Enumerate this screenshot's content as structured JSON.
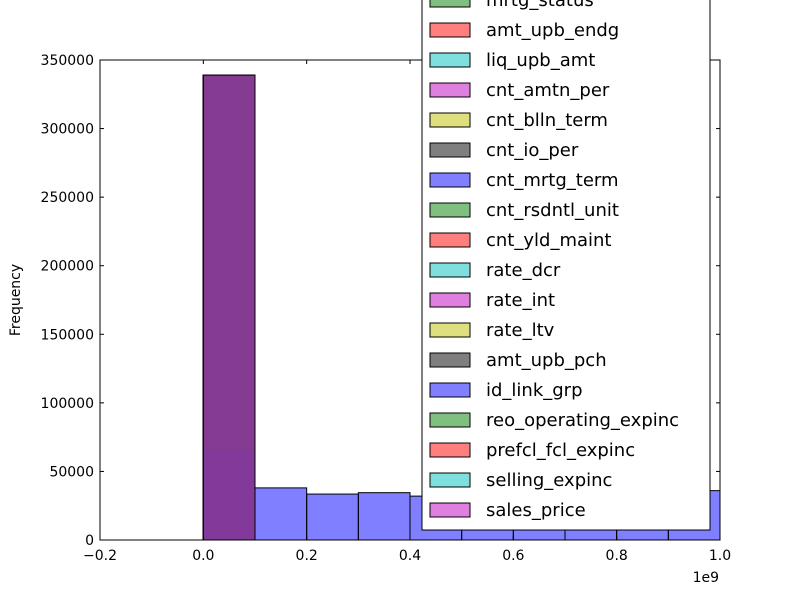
{
  "chart_data": {
    "type": "bar",
    "ylabel": "Frequency",
    "xlim": [
      -200000000,
      1000000000
    ],
    "ylim": [
      0,
      350000
    ],
    "x_offset_label": "1e9",
    "x_ticks": [
      -200000000,
      0,
      200000000,
      400000000,
      600000000,
      800000000,
      1000000000
    ],
    "x_tick_labels": [
      "−0.2",
      "0.0",
      "0.2",
      "0.4",
      "0.6",
      "0.8",
      "1.0"
    ],
    "y_ticks": [
      0,
      50000,
      100000,
      150000,
      200000,
      250000,
      300000,
      350000
    ],
    "y_tick_labels": [
      "0",
      "50000",
      "100000",
      "150000",
      "200000",
      "250000",
      "300000",
      "350000"
    ],
    "grid": false,
    "legend_placement": "upper-right, clipped at top",
    "bin_edges": [
      0,
      100000000,
      200000000,
      300000000,
      400000000,
      500000000,
      600000000,
      700000000,
      800000000,
      900000000,
      1000000000
    ],
    "series": [
      {
        "name": "mrtg_status",
        "color": "#008000",
        "values": [
          339000,
          0,
          0,
          0,
          0,
          0,
          0,
          0,
          0,
          0
        ]
      },
      {
        "name": "amt_upb_endg",
        "color": "#ff0000",
        "values": [
          339000,
          0,
          0,
          0,
          0,
          0,
          0,
          0,
          0,
          0
        ]
      },
      {
        "name": "liq_upb_amt",
        "color": "#00bfbf",
        "values": [
          339000,
          0,
          0,
          0,
          0,
          0,
          0,
          0,
          0,
          0
        ]
      },
      {
        "name": "cnt_amtn_per",
        "color": "#bf00bf",
        "values": [
          339000,
          0,
          0,
          0,
          0,
          0,
          0,
          0,
          0,
          0
        ]
      },
      {
        "name": "cnt_blln_term",
        "color": "#bfbf00",
        "values": [
          339000,
          0,
          0,
          0,
          0,
          0,
          0,
          0,
          0,
          0
        ]
      },
      {
        "name": "cnt_io_per",
        "color": "#000000",
        "values": [
          339000,
          0,
          0,
          0,
          0,
          0,
          0,
          0,
          0,
          0
        ]
      },
      {
        "name": "cnt_mrtg_term",
        "color": "#0000ff",
        "values": [
          339000,
          0,
          0,
          0,
          0,
          0,
          0,
          0,
          0,
          0
        ]
      },
      {
        "name": "cnt_rsdntl_unit",
        "color": "#008000",
        "values": [
          339000,
          0,
          0,
          0,
          0,
          0,
          0,
          0,
          0,
          0
        ]
      },
      {
        "name": "cnt_yld_maint",
        "color": "#ff0000",
        "values": [
          339000,
          0,
          0,
          0,
          0,
          0,
          0,
          0,
          0,
          0
        ]
      },
      {
        "name": "rate_dcr",
        "color": "#00bfbf",
        "values": [
          339000,
          0,
          0,
          0,
          0,
          0,
          0,
          0,
          0,
          0
        ]
      },
      {
        "name": "rate_int",
        "color": "#bf00bf",
        "values": [
          339000,
          0,
          0,
          0,
          0,
          0,
          0,
          0,
          0,
          0
        ]
      },
      {
        "name": "rate_ltv",
        "color": "#bfbf00",
        "values": [
          339000,
          0,
          0,
          0,
          0,
          0,
          0,
          0,
          0,
          0
        ]
      },
      {
        "name": "amt_upb_pch",
        "color": "#000000",
        "values": [
          339000,
          0,
          0,
          0,
          0,
          0,
          0,
          0,
          0,
          0
        ]
      },
      {
        "name": "id_link_grp",
        "color": "#0000ff",
        "values": [
          66000,
          38000,
          33500,
          34500,
          32000,
          31000,
          33000,
          34000,
          35000,
          36000
        ]
      },
      {
        "name": "reo_operating_expinc",
        "color": "#008000",
        "values": [
          339000,
          0,
          0,
          0,
          0,
          0,
          0,
          0,
          0,
          0
        ]
      },
      {
        "name": "prefcl_fcl_expinc",
        "color": "#ff0000",
        "values": [
          339000,
          0,
          0,
          0,
          0,
          0,
          0,
          0,
          0,
          0
        ]
      },
      {
        "name": "selling_expinc",
        "color": "#00bfbf",
        "values": [
          339000,
          0,
          0,
          0,
          0,
          0,
          0,
          0,
          0,
          0
        ]
      },
      {
        "name": "sales_price",
        "color": "#bf00bf",
        "values": [
          339000,
          0,
          0,
          0,
          0,
          0,
          0,
          0,
          0,
          0
        ]
      }
    ]
  }
}
